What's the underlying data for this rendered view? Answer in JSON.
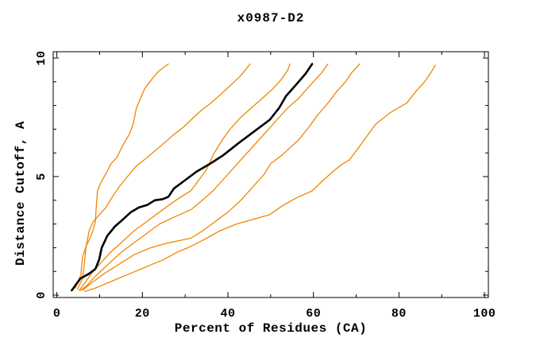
{
  "chart_data": {
    "type": "line",
    "title": "x0987-D2",
    "xlabel": "Percent of Residues (CA)",
    "ylabel": "Distance Cutoff, A",
    "xlim": [
      0,
      100
    ],
    "ylim": [
      0,
      10
    ],
    "x_ticks": {
      "major": [
        0,
        20,
        40,
        60,
        80,
        100
      ],
      "minor": [
        10,
        30,
        50,
        70,
        90
      ]
    },
    "y_ticks": {
      "major": [
        0,
        5,
        10
      ],
      "minor": [
        1,
        2,
        3,
        4,
        6,
        7,
        8,
        9
      ]
    },
    "grid": "off",
    "legend": "none",
    "frame": "box",
    "colors": {
      "orange": "#f28500",
      "black": "#000000"
    },
    "series": [
      {
        "name": "orange-1",
        "color": "#f28500",
        "width": 1.3,
        "points": [
          [
            4.3,
            0.3
          ],
          [
            5.6,
            0.85
          ],
          [
            6.0,
            1.6
          ],
          [
            6.8,
            2.05
          ],
          [
            7.5,
            2.3
          ],
          [
            8.4,
            2.7
          ],
          [
            9.0,
            3.1
          ],
          [
            9.2,
            3.65
          ],
          [
            9.5,
            4.4
          ],
          [
            10.3,
            4.75
          ],
          [
            11.4,
            5.1
          ],
          [
            12.7,
            5.55
          ],
          [
            14.0,
            5.8
          ],
          [
            15.5,
            6.35
          ],
          [
            17.0,
            6.8
          ],
          [
            17.9,
            7.25
          ],
          [
            18.6,
            7.9
          ],
          [
            20.5,
            8.7
          ],
          [
            22.4,
            9.15
          ],
          [
            23.8,
            9.45
          ],
          [
            26.1,
            9.75
          ]
        ]
      },
      {
        "name": "orange-2",
        "color": "#f28500",
        "width": 1.3,
        "points": [
          [
            4.8,
            0.25
          ],
          [
            6.0,
            0.7
          ],
          [
            6.4,
            1.3
          ],
          [
            6.8,
            2.0
          ],
          [
            7.6,
            2.75
          ],
          [
            8.5,
            3.1
          ],
          [
            10.0,
            3.4
          ],
          [
            11.5,
            3.7
          ],
          [
            13.0,
            4.15
          ],
          [
            14.7,
            4.6
          ],
          [
            16.5,
            5.0
          ],
          [
            18.6,
            5.45
          ],
          [
            20.7,
            5.75
          ],
          [
            22.7,
            6.05
          ],
          [
            25.0,
            6.4
          ],
          [
            27.2,
            6.75
          ],
          [
            29.7,
            7.1
          ],
          [
            31.7,
            7.45
          ],
          [
            33.8,
            7.8
          ],
          [
            36.0,
            8.1
          ],
          [
            38.2,
            8.45
          ],
          [
            40.6,
            8.85
          ],
          [
            42.7,
            9.2
          ],
          [
            44.1,
            9.5
          ],
          [
            45.2,
            9.75
          ]
        ]
      },
      {
        "name": "orange-3",
        "color": "#f28500",
        "width": 1.3,
        "points": [
          [
            5.2,
            0.2
          ],
          [
            6.5,
            0.5
          ],
          [
            8.0,
            0.9
          ],
          [
            10.0,
            1.3
          ],
          [
            12.5,
            1.8
          ],
          [
            15.0,
            2.2
          ],
          [
            18.0,
            2.7
          ],
          [
            21.0,
            3.1
          ],
          [
            24.0,
            3.5
          ],
          [
            27.0,
            3.9
          ],
          [
            29.5,
            4.2
          ],
          [
            31.3,
            4.4
          ],
          [
            33.0,
            4.8
          ],
          [
            35.0,
            5.3
          ],
          [
            36.5,
            5.9
          ],
          [
            38.5,
            6.5
          ],
          [
            40.5,
            7.0
          ],
          [
            43.0,
            7.5
          ],
          [
            45.5,
            7.9
          ],
          [
            48.0,
            8.3
          ],
          [
            50.5,
            8.7
          ],
          [
            52.5,
            9.1
          ],
          [
            54.0,
            9.5
          ],
          [
            54.5,
            9.75
          ]
        ]
      },
      {
        "name": "orange-4",
        "color": "#f28500",
        "width": 1.3,
        "points": [
          [
            5.5,
            0.2
          ],
          [
            7.0,
            0.4
          ],
          [
            9.0,
            0.8
          ],
          [
            12.0,
            1.3
          ],
          [
            15.0,
            1.8
          ],
          [
            18.0,
            2.2
          ],
          [
            21.0,
            2.6
          ],
          [
            24.0,
            3.0
          ],
          [
            27.5,
            3.3
          ],
          [
            31.3,
            3.6
          ],
          [
            34.0,
            4.0
          ],
          [
            36.5,
            4.4
          ],
          [
            39.0,
            4.9
          ],
          [
            41.5,
            5.4
          ],
          [
            44.0,
            5.9
          ],
          [
            46.5,
            6.4
          ],
          [
            49.0,
            6.9
          ],
          [
            51.5,
            7.4
          ],
          [
            54.0,
            7.9
          ],
          [
            56.5,
            8.3
          ],
          [
            58.5,
            8.7
          ],
          [
            60.5,
            9.1
          ],
          [
            62.0,
            9.4
          ],
          [
            63.4,
            9.75
          ]
        ]
      },
      {
        "name": "orange-5",
        "color": "#f28500",
        "width": 1.3,
        "points": [
          [
            6.0,
            0.2
          ],
          [
            8.0,
            0.5
          ],
          [
            11.0,
            0.9
          ],
          [
            14.5,
            1.3
          ],
          [
            18.0,
            1.7
          ],
          [
            22.0,
            2.0
          ],
          [
            26.0,
            2.2
          ],
          [
            31.3,
            2.4
          ],
          [
            34.0,
            2.7
          ],
          [
            37.0,
            3.1
          ],
          [
            40.0,
            3.5
          ],
          [
            43.0,
            4.0
          ],
          [
            46.0,
            4.6
          ],
          [
            48.5,
            5.1
          ],
          [
            50.0,
            5.55
          ],
          [
            52.6,
            5.9
          ],
          [
            55.0,
            6.3
          ],
          [
            56.3,
            6.5
          ],
          [
            59.0,
            7.1
          ],
          [
            61.0,
            7.6
          ],
          [
            63.4,
            8.1
          ],
          [
            65.5,
            8.6
          ],
          [
            67.5,
            9.0
          ],
          [
            69.0,
            9.4
          ],
          [
            70.8,
            9.75
          ]
        ]
      },
      {
        "name": "orange-6",
        "color": "#f28500",
        "width": 1.3,
        "points": [
          [
            6.5,
            0.15
          ],
          [
            9.0,
            0.3
          ],
          [
            13.0,
            0.6
          ],
          [
            17.0,
            0.9
          ],
          [
            21.0,
            1.2
          ],
          [
            25.0,
            1.5
          ],
          [
            28.0,
            1.8
          ],
          [
            31.3,
            2.05
          ],
          [
            35.0,
            2.4
          ],
          [
            38.0,
            2.7
          ],
          [
            42.0,
            3.0
          ],
          [
            46.0,
            3.2
          ],
          [
            49.8,
            3.4
          ],
          [
            53.0,
            3.8
          ],
          [
            56.0,
            4.1
          ],
          [
            59.7,
            4.4
          ],
          [
            62.0,
            4.8
          ],
          [
            64.5,
            5.2
          ],
          [
            66.5,
            5.5
          ],
          [
            68.4,
            5.7
          ],
          [
            70.5,
            6.2
          ],
          [
            72.5,
            6.7
          ],
          [
            74.5,
            7.2
          ],
          [
            78.0,
            7.7
          ],
          [
            81.8,
            8.1
          ],
          [
            84.0,
            8.6
          ],
          [
            86.0,
            9.0
          ],
          [
            87.5,
            9.4
          ],
          [
            88.5,
            9.7
          ]
        ]
      },
      {
        "name": "black-main",
        "color": "#000000",
        "width": 2.6,
        "points": [
          [
            3.5,
            0.2
          ],
          [
            5.5,
            0.7
          ],
          [
            7.5,
            0.9
          ],
          [
            9.0,
            1.1
          ],
          [
            9.9,
            1.5
          ],
          [
            10.5,
            2.0
          ],
          [
            11.8,
            2.5
          ],
          [
            13.6,
            2.9
          ],
          [
            15.5,
            3.2
          ],
          [
            17.3,
            3.5
          ],
          [
            19.2,
            3.7
          ],
          [
            21.1,
            3.8
          ],
          [
            22.9,
            4.0
          ],
          [
            24.8,
            4.05
          ],
          [
            26.1,
            4.15
          ],
          [
            27.4,
            4.5
          ],
          [
            30.0,
            4.85
          ],
          [
            32.6,
            5.2
          ],
          [
            35.9,
            5.55
          ],
          [
            38.9,
            5.9
          ],
          [
            42.4,
            6.4
          ],
          [
            46.1,
            6.9
          ],
          [
            49.8,
            7.4
          ],
          [
            52.0,
            7.9
          ],
          [
            53.6,
            8.4
          ],
          [
            56.3,
            8.95
          ],
          [
            58.2,
            9.35
          ],
          [
            59.7,
            9.75
          ]
        ]
      }
    ]
  }
}
